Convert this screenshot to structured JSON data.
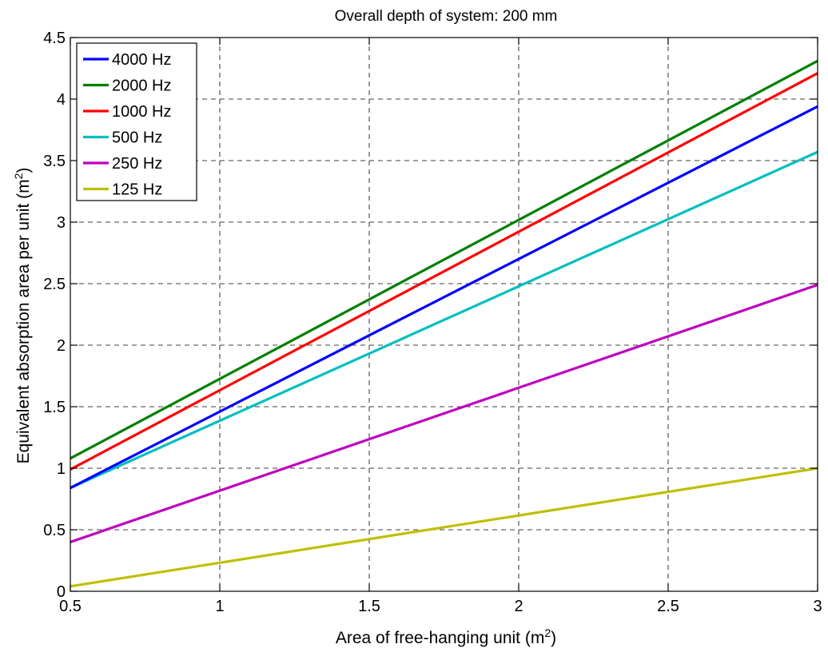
{
  "chart_data": {
    "type": "line",
    "title": "Overall depth of system: 200 mm",
    "xlabel": {
      "base": "Area of free-hanging unit (m",
      "sup": "2",
      "tail": ")"
    },
    "ylabel": {
      "base": "Equivalent absorption area per unit (m",
      "sup": "2",
      "tail": ")"
    },
    "xlim": [
      0.5,
      3
    ],
    "ylim": [
      0,
      4.5
    ],
    "xticks": [
      0.5,
      1,
      1.5,
      2,
      2.5,
      3
    ],
    "yticks": [
      0,
      0.5,
      1,
      1.5,
      2,
      2.5,
      3,
      3.5,
      4,
      4.5
    ],
    "xtick_labels": [
      "0.5",
      "1",
      "1.5",
      "2",
      "2.5",
      "3"
    ],
    "ytick_labels": [
      "0",
      "0.5",
      "1",
      "1.5",
      "2",
      "2.5",
      "3",
      "3.5",
      "4",
      "4.5"
    ],
    "grid": true,
    "legend_position": "top-left",
    "x": [
      0.5,
      3
    ],
    "series": [
      {
        "name": "4000 Hz",
        "color": "#0000ff",
        "values": [
          0.84,
          3.94
        ]
      },
      {
        "name": "2000 Hz",
        "color": "#008000",
        "values": [
          1.08,
          4.31
        ]
      },
      {
        "name": "1000 Hz",
        "color": "#ff0000",
        "values": [
          0.99,
          4.21
        ]
      },
      {
        "name": "500 Hz",
        "color": "#00bfbf",
        "values": [
          0.84,
          3.57
        ]
      },
      {
        "name": "250 Hz",
        "color": "#bf00bf",
        "values": [
          0.4,
          2.49
        ]
      },
      {
        "name": "125 Hz",
        "color": "#bfbf00",
        "values": [
          0.04,
          1.0
        ]
      }
    ]
  }
}
